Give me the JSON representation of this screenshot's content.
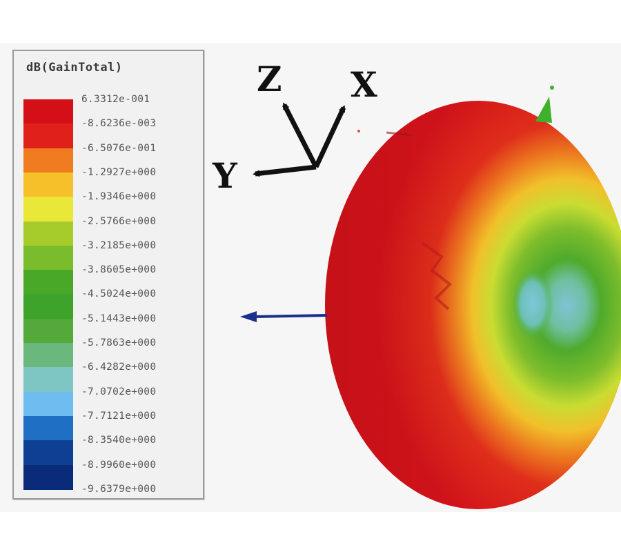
{
  "legend": {
    "title": "dB(GainTotal)",
    "colors": [
      "#d40f17",
      "#e0201a",
      "#f07c1f",
      "#f6c02a",
      "#e9e838",
      "#a6cc2c",
      "#79bd2c",
      "#4aa829",
      "#3da32a",
      "#55a83a",
      "#6bb87e",
      "#7ec6c4",
      "#6fbcf0",
      "#1f6fc4",
      "#0f3f92",
      "#0a2b7a"
    ],
    "tick_labels": [
      "6.3312e-001",
      "-8.6236e-003",
      "-6.5076e-001",
      "-1.2927e+000",
      "-1.9346e+000",
      "-2.5766e+000",
      "-3.2185e+000",
      "-3.8605e+000",
      "-4.5024e+000",
      "-5.1443e+000",
      "-5.7863e+000",
      "-6.4282e+000",
      "-7.0702e+000",
      "-7.7121e+000",
      "-8.3540e+000",
      "-8.9960e+000",
      "-9.6379e+000"
    ]
  },
  "axes": {
    "z_label": "Z",
    "x_label": "X",
    "y_label": "Y"
  },
  "colors": {
    "axis_arrow": "#111111",
    "direction_arrow": "#1a2f8c",
    "green_marker": "#3fb02a"
  }
}
